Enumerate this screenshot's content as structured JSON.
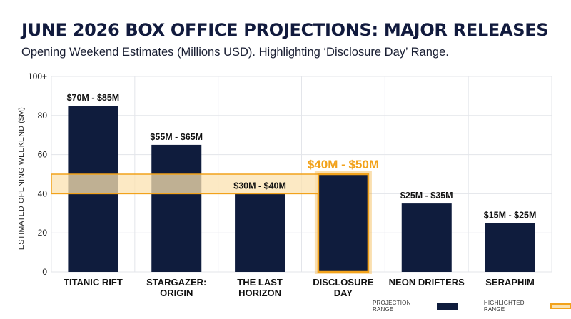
{
  "header": {
    "title": "JUNE 2026 BOX OFFICE PROJECTIONS: MAJOR RELEASES",
    "subtitle": "Opening Weekend Estimates (Millions USD). Highlighting ‘Disclosure Day’ Range."
  },
  "legend": {
    "projection_label": "PROJECTION RANGE",
    "highlighted_label": "HIGHLIGHTED RANGE"
  },
  "chart_data": {
    "type": "bar",
    "ylabel": "ESTIMATED OPENING WEEKEND ($M)",
    "ylim": [
      0,
      100
    ],
    "yticks": [
      "0",
      "20",
      "40",
      "60",
      "80",
      "100+"
    ],
    "grid": true,
    "categories": [
      [
        "TITANIC RIFT"
      ],
      [
        "STARGAZER:",
        "ORIGIN"
      ],
      [
        "THE LAST",
        "HORIZON"
      ],
      [
        "DISCLOSURE",
        "DAY"
      ],
      [
        "NEON DRIFTERS"
      ],
      [
        "SERAPHIM"
      ]
    ],
    "series": [
      {
        "low": [
          70,
          55,
          30,
          40,
          25,
          15
        ],
        "high": [
          85,
          65,
          40,
          50,
          35,
          25
        ]
      }
    ],
    "data_labels": [
      "$70M - $85M",
      "$55M - $65M",
      "$30M - $40M",
      "$40M - $50M",
      "$25M - $35M",
      "$15M - $25M"
    ],
    "highlight": {
      "index": 3,
      "low": 40,
      "high": 50
    },
    "colors": {
      "bar": "#0f1c3d",
      "highlight": "#f2a21b",
      "highlight_fill": "#fbe2b0",
      "grid": "#e3e5ea"
    }
  }
}
